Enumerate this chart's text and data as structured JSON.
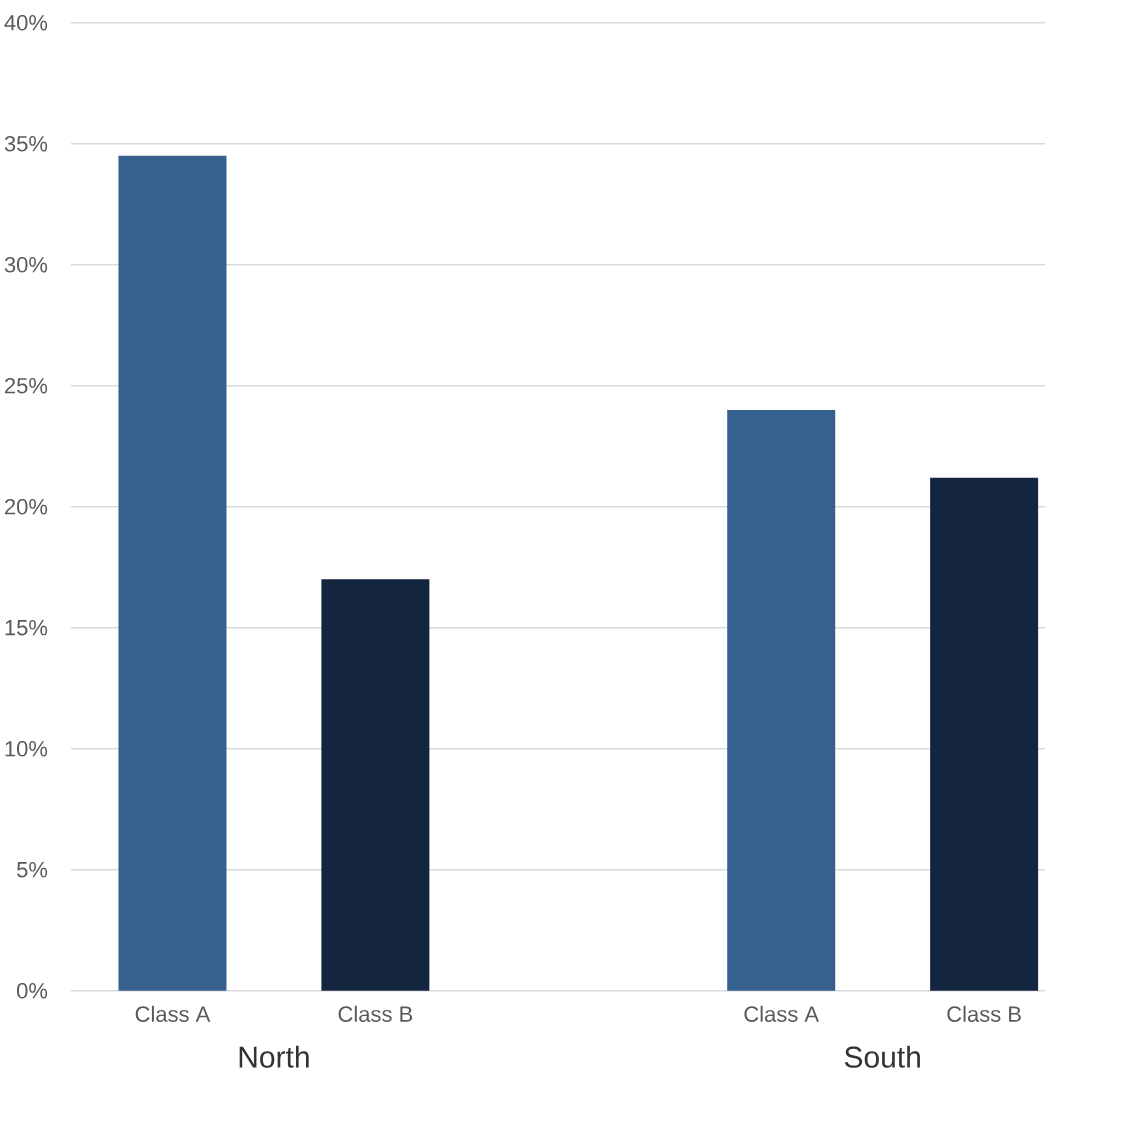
{
  "chart_data": {
    "type": "bar",
    "categories": [
      "Class A",
      "Class B",
      null,
      "Class A",
      "Class B"
    ],
    "values": [
      34.5,
      17.0,
      null,
      24.0,
      21.2
    ],
    "colors": [
      "#36618f",
      "#13253f",
      null,
      "#36618f",
      "#13253f"
    ],
    "ylim": [
      0,
      40
    ],
    "yticks": [
      {
        "value": 0,
        "label": "0%"
      },
      {
        "value": 5,
        "label": "5%"
      },
      {
        "value": 10,
        "label": "10%"
      },
      {
        "value": 15,
        "label": "15%"
      },
      {
        "value": 20,
        "label": "20%"
      },
      {
        "value": 25,
        "label": "25%"
      },
      {
        "value": 30,
        "label": "30%"
      },
      {
        "value": 35,
        "label": "35%"
      },
      {
        "value": 40,
        "label": "40%"
      }
    ],
    "grid": "y",
    "annotations": [
      "North",
      "South"
    ]
  }
}
